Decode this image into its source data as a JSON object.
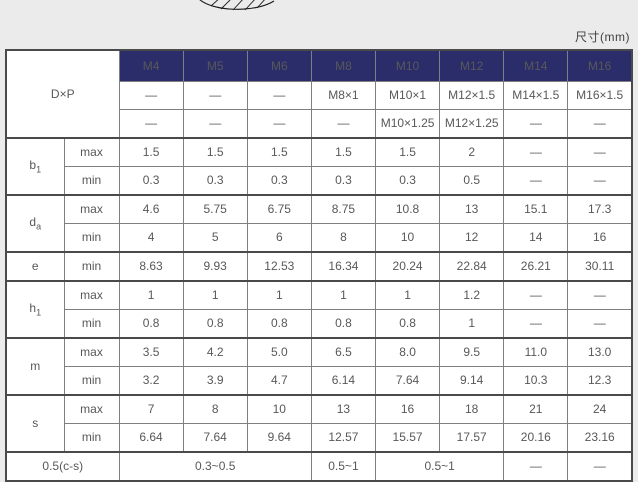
{
  "caption": "尺寸(mm)",
  "table": {
    "corner_label": "D×P",
    "columns": [
      "M4",
      "M5",
      "M6",
      "M8",
      "M10",
      "M12",
      "M14",
      "M16"
    ],
    "pitch_rows": [
      [
        "—",
        "—",
        "—",
        "M8×1",
        "M10×1",
        "M12×1.5",
        "M14×1.5",
        "M16×1.5"
      ],
      [
        "—",
        "—",
        "—",
        "—",
        "M10×1.25",
        "M12×1.25",
        "—",
        "—"
      ]
    ],
    "param_groups": [
      {
        "base": "b",
        "sub": "1",
        "rows": [
          {
            "limit": "max",
            "values": [
              "1.5",
              "1.5",
              "1.5",
              "1.5",
              "1.5",
              "2",
              "—",
              "—"
            ]
          },
          {
            "limit": "min",
            "values": [
              "0.3",
              "0.3",
              "0.3",
              "0.3",
              "0.3",
              "0.5",
              "—",
              "—"
            ]
          }
        ]
      },
      {
        "base": "d",
        "sub": "a",
        "rows": [
          {
            "limit": "max",
            "values": [
              "4.6",
              "5.75",
              "6.75",
              "8.75",
              "10.8",
              "13",
              "15.1",
              "17.3"
            ]
          },
          {
            "limit": "min",
            "values": [
              "4",
              "5",
              "6",
              "8",
              "10",
              "12",
              "14",
              "16"
            ]
          }
        ]
      },
      {
        "base": "e",
        "sub": "",
        "rows": [
          {
            "limit": "min",
            "values": [
              "8.63",
              "9.93",
              "12.53",
              "16.34",
              "20.24",
              "22.84",
              "26.21",
              "30.11"
            ]
          }
        ]
      },
      {
        "base": "h",
        "sub": "1",
        "rows": [
          {
            "limit": "max",
            "values": [
              "1",
              "1",
              "1",
              "1",
              "1",
              "1.2",
              "—",
              "—"
            ]
          },
          {
            "limit": "min",
            "values": [
              "0.8",
              "0.8",
              "0.8",
              "0.8",
              "0.8",
              "1",
              "—",
              "—"
            ]
          }
        ]
      },
      {
        "base": "m",
        "sub": "",
        "rows": [
          {
            "limit": "max",
            "values": [
              "3.5",
              "4.2",
              "5.0",
              "6.5",
              "8.0",
              "9.5",
              "11.0",
              "13.0"
            ]
          },
          {
            "limit": "min",
            "values": [
              "3.2",
              "3.9",
              "4.7",
              "6.14",
              "7.64",
              "9.14",
              "10.3",
              "12.3"
            ]
          }
        ]
      },
      {
        "base": "s",
        "sub": "",
        "rows": [
          {
            "limit": "max",
            "values": [
              "7",
              "8",
              "10",
              "13",
              "16",
              "18",
              "21",
              "24"
            ]
          },
          {
            "limit": "min",
            "values": [
              "6.64",
              "7.64",
              "9.64",
              "12.57",
              "15.57",
              "17.57",
              "20.16",
              "23.16"
            ]
          }
        ]
      }
    ],
    "footer": {
      "label": "0.5(c-s)",
      "cells": [
        {
          "text": "0.3~0.5",
          "span": 3
        },
        {
          "text": "0.5~1",
          "span": 1
        },
        {
          "text": "0.5~1",
          "span": 2
        },
        {
          "text": "—",
          "span": 1
        },
        {
          "text": "—",
          "span": 1
        }
      ]
    }
  },
  "colors": {
    "header_bg": "#2b2d6b",
    "page_bg": "#ebebec",
    "grid_line": "#7f7f82",
    "heavy_line": "#4a4a4c",
    "value_text": "#58585a",
    "header_text": "#ffffff"
  }
}
